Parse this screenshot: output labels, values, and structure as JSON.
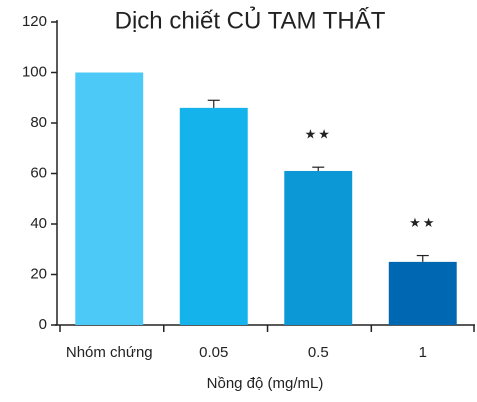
{
  "chart_data": {
    "type": "bar",
    "title": "Dịch chiết CỦ TAM THẤT",
    "x_label": "Nồng độ (mg/mL)",
    "categories": [
      "Nhóm chứng",
      "0.05",
      "0.5",
      "1"
    ],
    "values": [
      100,
      86,
      61,
      25
    ],
    "errors": [
      null,
      3,
      1.5,
      2.5
    ],
    "value_annotations": [
      null,
      null,
      "★★",
      "★★"
    ],
    "colors": [
      "#4cc9f6",
      "#14b3ec",
      "#0c97d7",
      "#0067b2"
    ],
    "ylim": [
      0,
      120
    ],
    "yticks": [
      0,
      20,
      40,
      60,
      80,
      100,
      120
    ],
    "grid": false
  }
}
